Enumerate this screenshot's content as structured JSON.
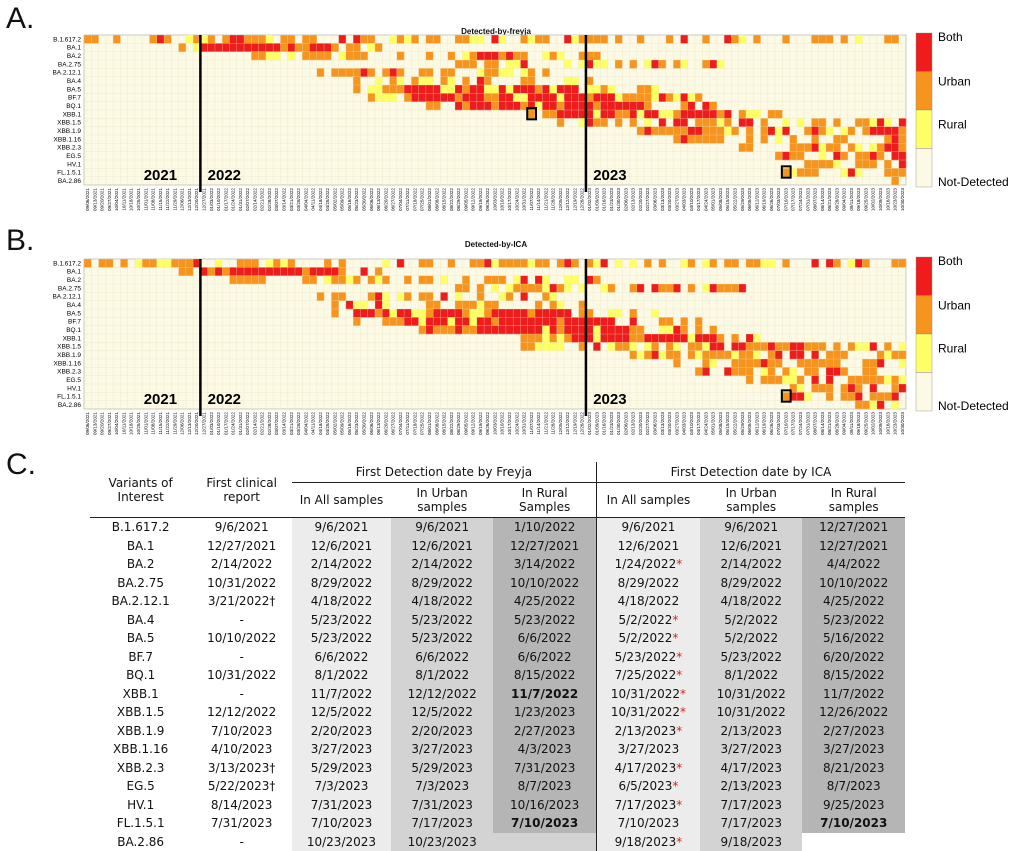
{
  "panels": {
    "a": "A.",
    "b": "B.",
    "c": "C."
  },
  "colors": {
    "both": "#ee1c1c",
    "urban": "#f7941d",
    "rural": "#ffff66",
    "not_detected": "#fcf9e4",
    "grid": "#e6e2c4"
  },
  "legend": [
    "Both",
    "Urban",
    "Rural",
    "Not-Detected"
  ],
  "chart_data": [
    {
      "type": "heatmap",
      "title": "Detected-by-freyja",
      "variants": [
        "B.1.617.2",
        "BA.1",
        "BA.2",
        "BA.2.75",
        "BA.2.12.1",
        "BA.4",
        "BA.5",
        "BF.7",
        "BQ.1",
        "XBB.1",
        "XBB.1.5",
        "XBB.1.9",
        "XBB.1.16",
        "XBB.2.3",
        "EG.5",
        "HV.1",
        "FL.1.5.1",
        "BA.2.86"
      ],
      "first_week": "09/06/2021",
      "last_week": "10/30/2023",
      "year_labels": [
        "2021",
        "2022",
        "2023"
      ],
      "legend_categories": [
        "Both",
        "Urban",
        "Rural",
        "Not-Detected"
      ]
    },
    {
      "type": "heatmap",
      "title": "Detected-by-ICA",
      "variants": [
        "B.1.617.2",
        "BA.1",
        "BA.2",
        "BA.2.75",
        "BA.2.12.1",
        "BA.4",
        "BA.5",
        "BF.7",
        "BQ.1",
        "XBB.1",
        "XBB.1.5",
        "XBB.1.9",
        "XBB.1.16",
        "XBB.2.3",
        "EG.5",
        "HV.1",
        "FL.1.5.1",
        "BA.2.86"
      ],
      "first_week": "09/06/2021",
      "last_week": "10/30/2023",
      "year_labels": [
        "2021",
        "2022",
        "2023"
      ],
      "legend_categories": [
        "Both",
        "Urban",
        "Rural",
        "Not-Detected"
      ]
    },
    {
      "type": "table",
      "headers": {
        "variants": "Variants of Interest",
        "clinical": "First clinical report",
        "freyja_group": "First Detection date by Freyja",
        "ica_group": "First Detection date by ICA",
        "all": "In All samples",
        "urban": "In Urban samples",
        "rural": "In Rural Samples",
        "rural_ica": "In Rural samples"
      },
      "rows": [
        [
          "B.1.617.2",
          "9/6/2021",
          "9/6/2021",
          "9/6/2021",
          "1/10/2022",
          "9/6/2021",
          "9/6/2021",
          "12/27/2021"
        ],
        [
          "BA.1",
          "12/27/2021",
          "12/6/2021",
          "12/6/2021",
          "12/27/2021",
          "12/6/2021",
          "12/6/2021",
          "12/27/2021"
        ],
        [
          "BA.2",
          "2/14/2022",
          "2/14/2022",
          "2/14/2022",
          "3/14/2022",
          "1/24/2022*",
          "2/14/2022",
          "4/4/2022"
        ],
        [
          "BA.2.75",
          "10/31/2022",
          "8/29/2022",
          "8/29/2022",
          "10/10/2022",
          "8/29/2022",
          "8/29/2022",
          "10/10/2022"
        ],
        [
          "BA.2.12.1",
          "3/21/2022†",
          "4/18/2022",
          "4/18/2022",
          "4/25/2022",
          "4/18/2022",
          "4/18/2022",
          "4/25/2022"
        ],
        [
          "BA.4",
          "-",
          "5/23/2022",
          "5/23/2022",
          "5/23/2022",
          "5/2/2022*",
          "5/2/2022",
          "5/23/2022"
        ],
        [
          "BA.5",
          "10/10/2022",
          "5/23/2022",
          "5/23/2022",
          "6/6/2022",
          "5/2/2022*",
          "5/2/2022",
          "5/16/2022"
        ],
        [
          "BF.7",
          "-",
          "6/6/2022",
          "6/6/2022",
          "6/6/2022",
          "5/23/2022*",
          "5/23/2022",
          "6/20/2022"
        ],
        [
          "BQ.1",
          "10/31/2022",
          "8/1/2022",
          "8/1/2022",
          "8/15/2022",
          "7/25/2022*",
          "8/1/2022",
          "8/15/2022"
        ],
        [
          "XBB.1",
          "-",
          "11/7/2022",
          "12/12/2022",
          "11/7/2022",
          "10/31/2022*",
          "10/31/2022",
          "11/7/2022"
        ],
        [
          "XBB.1.5",
          "12/12/2022",
          "12/5/2022",
          "12/5/2022",
          "1/23/2023",
          "10/31/2022*",
          "10/31/2022",
          "12/26/2022"
        ],
        [
          "XBB.1.9",
          "7/10/2023",
          "2/20/2023",
          "2/20/2023",
          "2/27/2023",
          "2/13/2023*",
          "2/13/2023",
          "2/27/2023"
        ],
        [
          "XBB.1.16",
          "4/10/2023",
          "3/27/2023",
          "3/27/2023",
          "4/3/2023",
          "3/27/2023",
          "3/27/2023",
          "3/27/2023"
        ],
        [
          "XBB.2.3",
          "3/13/2023†",
          "5/29/2023",
          "5/29/2023",
          "7/31/2023",
          "4/17/2023*",
          "4/17/2023",
          "8/21/2023"
        ],
        [
          "EG.5",
          "5/22/2023†",
          "7/3/2023",
          "7/3/2023",
          "8/7/2023",
          "6/5/2023*",
          "2/13/2023",
          "8/7/2023"
        ],
        [
          "HV.1",
          "8/14/2023",
          "7/31/2023",
          "7/31/2023",
          "10/16/2023",
          "7/17/2023*",
          "7/17/2023",
          "9/25/2023"
        ],
        [
          "FL.1.5.1",
          "7/31/2023",
          "7/10/2023",
          "7/17/2023",
          "7/10/2023",
          "7/10/2023",
          "7/17/2023",
          "7/10/2023"
        ],
        [
          "BA.2.86",
          "-",
          "10/23/2023",
          "10/23/2023",
          "",
          "9/18/2023*",
          "9/18/2023",
          ""
        ]
      ],
      "bold_cells": [
        [
          9,
          4
        ],
        [
          16,
          4
        ],
        [
          16,
          7
        ]
      ]
    }
  ]
}
